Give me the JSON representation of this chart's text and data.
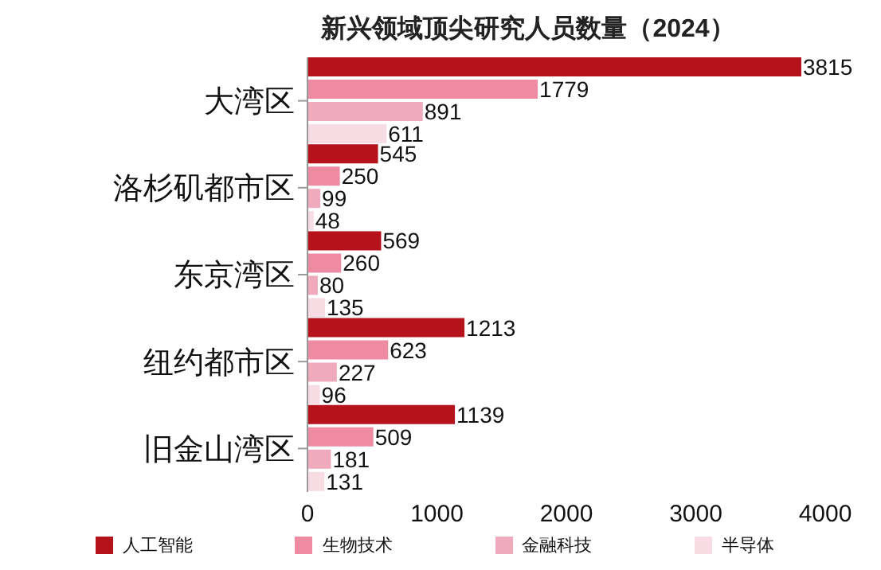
{
  "chart_data": {
    "type": "bar",
    "orientation": "horizontal",
    "title": "新兴领域顶尖研究人员数量（2024）",
    "categories": [
      "大湾区",
      "洛杉矶都市区",
      "东京湾区",
      "纽约都市区",
      "旧金山湾区"
    ],
    "series": [
      {
        "name": "人工智能",
        "color": "#b5121b",
        "values": [
          3815,
          545,
          569,
          1213,
          1139
        ]
      },
      {
        "name": "生物技术",
        "color": "#ef8aa3",
        "values": [
          1779,
          250,
          260,
          623,
          509
        ]
      },
      {
        "name": "金融科技",
        "color": "#f0aabd",
        "values": [
          891,
          99,
          80,
          227,
          181
        ]
      },
      {
        "name": "半导体",
        "color": "#f8dce4",
        "values": [
          611,
          48,
          135,
          96,
          131
        ]
      }
    ],
    "xlim": [
      0,
      4000
    ],
    "xticks": [
      0,
      1000,
      2000,
      3000,
      4000
    ],
    "grid": false,
    "legend": "bottom",
    "data_labels": true
  }
}
